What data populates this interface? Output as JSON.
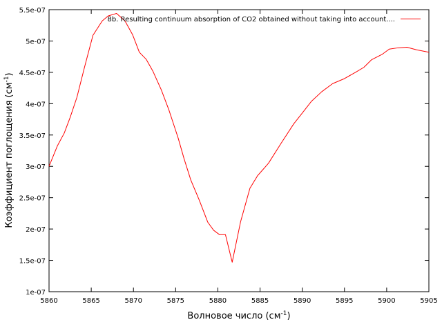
{
  "chart_data": {
    "type": "line",
    "xlabel": "Волновое число (см",
    "xlabel_sup": "-1",
    "xlabel_close": ")",
    "ylabel": "Коэффициент поглощения (см",
    "ylabel_sup": "-1",
    "ylabel_close": ")",
    "xlim": [
      5860,
      5905
    ],
    "ylim": [
      1e-07,
      5.5e-07
    ],
    "x_ticks": [
      5860,
      5865,
      5870,
      5875,
      5880,
      5885,
      5890,
      5895,
      5900,
      5905
    ],
    "x_tick_labels": [
      "5860",
      "5865",
      "5870",
      "5875",
      "5880",
      "5885",
      "5890",
      "5895",
      "5900",
      "5905"
    ],
    "y_ticks": [
      1e-07,
      1.5e-07,
      2e-07,
      2.5e-07,
      3e-07,
      3.5e-07,
      4e-07,
      4.5e-07,
      5e-07,
      5.5e-07
    ],
    "y_tick_labels": [
      "1e-07",
      "1.5e-07",
      "2e-07",
      "2.5e-07",
      "3e-07",
      "3.5e-07",
      "4e-07",
      "4.5e-07",
      "5e-07",
      "5.5e-07"
    ],
    "grid": false,
    "legend_position": "top-right",
    "series": [
      {
        "name": "8b. Resulting continuum absorption of CO2 obtained  without taking into account....",
        "color": "#ff0000",
        "x": [
          5860.0,
          5861.0,
          5861.8,
          5862.5,
          5863.3,
          5864.2,
          5865.2,
          5866.3,
          5867.0,
          5868.0,
          5869.0,
          5869.9,
          5870.7,
          5871.5,
          5872.3,
          5873.3,
          5874.2,
          5875.3,
          5876.0,
          5876.8,
          5877.8,
          5878.8,
          5879.5,
          5880.2,
          5880.9,
          5881.7,
          5882.7,
          5883.8,
          5884.7,
          5886.0,
          5887.5,
          5889.0,
          5890.0,
          5891.1,
          5892.3,
          5893.6,
          5895.0,
          5896.3,
          5897.3,
          5898.2,
          5899.5,
          5900.3,
          5901.3,
          5902.4,
          5903.5,
          5905.0
        ],
        "y": [
          3e-07,
          3.33e-07,
          3.53e-07,
          3.78e-07,
          4.1e-07,
          4.58e-07,
          5.09e-07,
          5.32e-07,
          5.4e-07,
          5.44e-07,
          5.32e-07,
          5.1e-07,
          4.82e-07,
          4.71e-07,
          4.52e-07,
          4.22e-07,
          3.9e-07,
          3.45e-07,
          3.12e-07,
          2.78e-07,
          2.46e-07,
          2.11e-07,
          1.98e-07,
          1.91e-07,
          1.91e-07,
          1.47e-07,
          2.12e-07,
          2.65e-07,
          2.85e-07,
          3.05e-07,
          3.37e-07,
          3.68e-07,
          3.85e-07,
          4.04e-07,
          4.19e-07,
          4.32e-07,
          4.4e-07,
          4.5e-07,
          4.58e-07,
          4.7e-07,
          4.79e-07,
          4.87e-07,
          4.89e-07,
          4.9e-07,
          4.86e-07,
          4.82e-07
        ]
      }
    ]
  }
}
